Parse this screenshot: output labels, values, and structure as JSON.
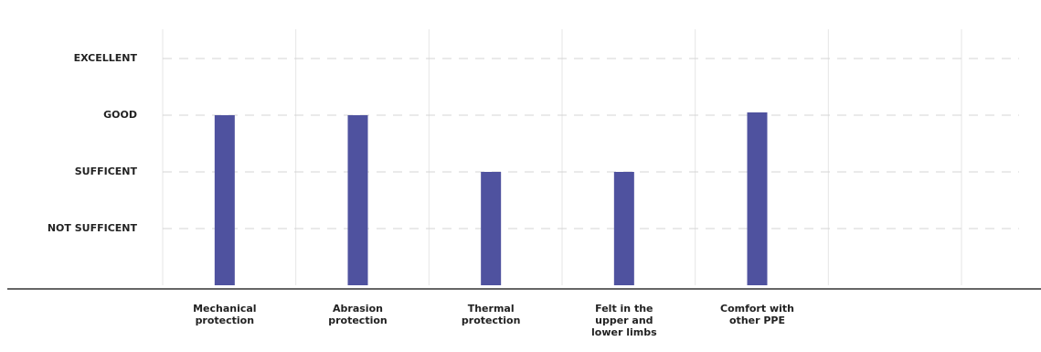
{
  "chart_data": {
    "type": "bar",
    "categories": [
      "Mechanical\nprotection",
      "Abrasion\nprotection",
      "Thermal\nprotection",
      "Felt in the\nupper and\nlower limbs",
      "Comfort with\nother PPE",
      null
    ],
    "values": [
      3,
      3,
      2,
      2,
      3.05,
      null
    ],
    "color": "#4f529f",
    "ylim": [
      0,
      4
    ],
    "yticks": [
      {
        "value": 1,
        "label": "NOT SUFFICENT"
      },
      {
        "value": 2,
        "label": "SUFFICENT"
      },
      {
        "value": 3,
        "label": "GOOD"
      },
      {
        "value": 4,
        "label": "EXCELLENT"
      }
    ],
    "grid": true
  }
}
